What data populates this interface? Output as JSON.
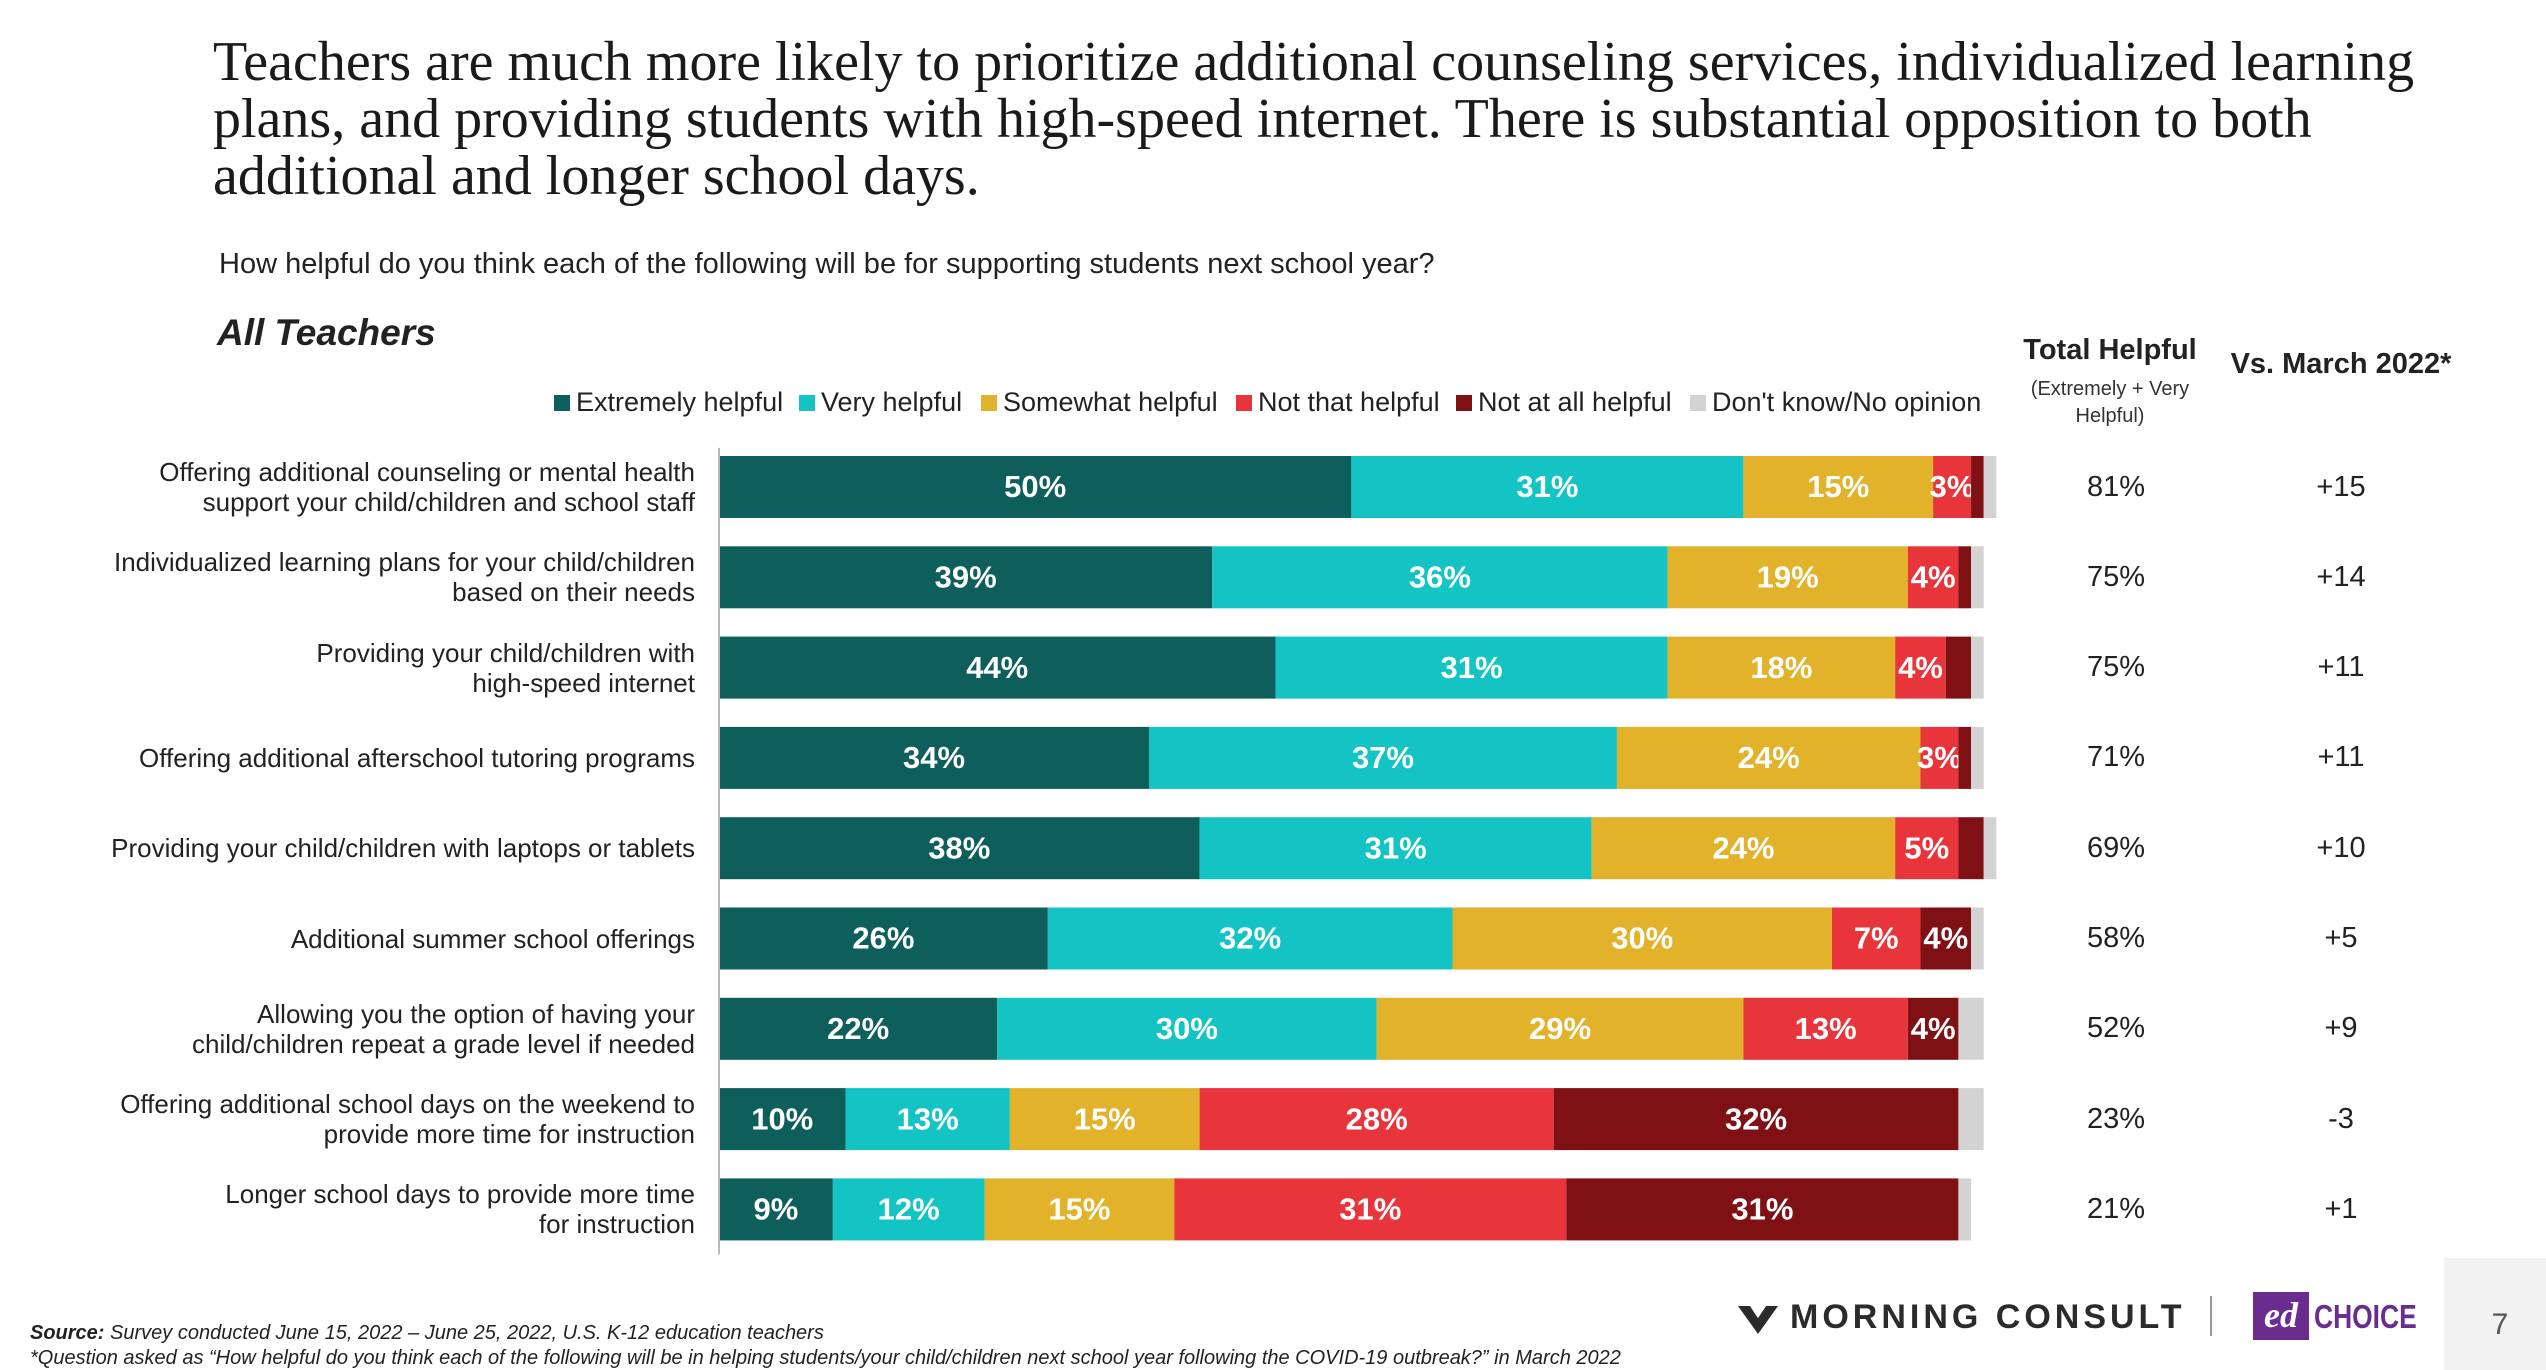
{
  "chart_data": {
    "type": "bar",
    "orientation": "horizontal",
    "stacked": true,
    "title": "Teachers are much more likely to prioritize additional counseling services, individualized learning plans, and providing students with high-speed internet. There is substantial opposition to both additional and longer school days.",
    "subtitle": "How helpful do you think each of the following will be for supporting students next school year?",
    "group_label": "All Teachers",
    "categories": [
      "Offering additional counseling or mental health\nsupport your child/children and school staff",
      "Individualized learning plans for your child/children\nbased on their needs",
      "Providing your child/children with\nhigh-speed  internet",
      "Offering additional afterschool tutoring programs",
      "Providing your child/children with laptops or tablets",
      "Additional summer school offerings",
      "Allowing you the option of having your\nchild/children repeat a grade level if needed",
      "Offering additional school days on the weekend to\nprovide more time for instruction",
      "Longer school days to provide more time\nfor instruction"
    ],
    "series": [
      {
        "name": "Extremely helpful",
        "color": "#0e5e5b",
        "values": [
          50,
          39,
          44,
          34,
          38,
          26,
          22,
          10,
          9
        ],
        "value_labels": [
          "50%",
          "39%",
          "44%",
          "34%",
          "38%",
          "26%",
          "22%",
          "10%",
          "9%"
        ]
      },
      {
        "name": "Very helpful",
        "color": "#14c4c4",
        "values": [
          31,
          36,
          31,
          37,
          31,
          32,
          30,
          13,
          12
        ],
        "value_labels": [
          "31%",
          "36%",
          "31%",
          "37%",
          "31%",
          "32%",
          "30%",
          "13%",
          "12%"
        ]
      },
      {
        "name": "Somewhat helpful",
        "color": "#e2b22a",
        "values": [
          15,
          19,
          18,
          24,
          24,
          30,
          29,
          15,
          15
        ],
        "value_labels": [
          "15%",
          "19%",
          "18%",
          "24%",
          "24%",
          "30%",
          "29%",
          "15%",
          "15%"
        ]
      },
      {
        "name": "Not that helpful",
        "color": "#e8353b",
        "values": [
          3,
          4,
          4,
          3,
          5,
          7,
          13,
          28,
          31
        ],
        "value_labels": [
          "3%",
          "4%",
          "4%",
          "3%",
          "5%",
          "7%",
          "13%",
          "28%",
          "31%"
        ]
      },
      {
        "name": "Not at all helpful",
        "color": "#7f1114",
        "values": [
          1,
          1,
          2,
          1,
          2,
          4,
          4,
          32,
          31
        ],
        "value_labels": [
          null,
          null,
          null,
          null,
          null,
          "4%",
          "4%",
          "32%",
          "31%"
        ]
      },
      {
        "name": "Don't know/No opinion",
        "color": "#d3d3d3",
        "values": [
          1,
          1,
          1,
          1,
          1,
          1,
          2,
          2,
          1
        ],
        "value_labels": [
          null,
          null,
          null,
          null,
          null,
          null,
          null,
          null,
          null
        ]
      }
    ],
    "xlim": [
      0,
      102
    ],
    "grid": false
  },
  "side_table": {
    "total_helpful": {
      "header": "Total Helpful",
      "subheader": "(Extremely + Very\nHelpful)",
      "values": [
        "81%",
        "75%",
        "75%",
        "71%",
        "69%",
        "58%",
        "52%",
        "23%",
        "21%"
      ]
    },
    "vs_march": {
      "header": "Vs. March 2022*",
      "values": [
        "+15",
        "+14",
        "+11",
        "+11",
        "+10",
        "+5",
        "+9",
        "-3",
        "+1"
      ]
    }
  },
  "footer": {
    "source_label": "Source:",
    "source_text": " Survey conducted June 15, 2022 – June 25, 2022, U.S. K-12 education teachers",
    "footnote": "*Question asked as “How helpful do you think each of the following will be in helping students/your child/children next school year following the COVID-19 outbreak?” in March 2022",
    "logo_1": "MORNING CONSULT",
    "logo_2_a": "ed",
    "logo_2_b": "CHOICE",
    "page_number": "7"
  }
}
